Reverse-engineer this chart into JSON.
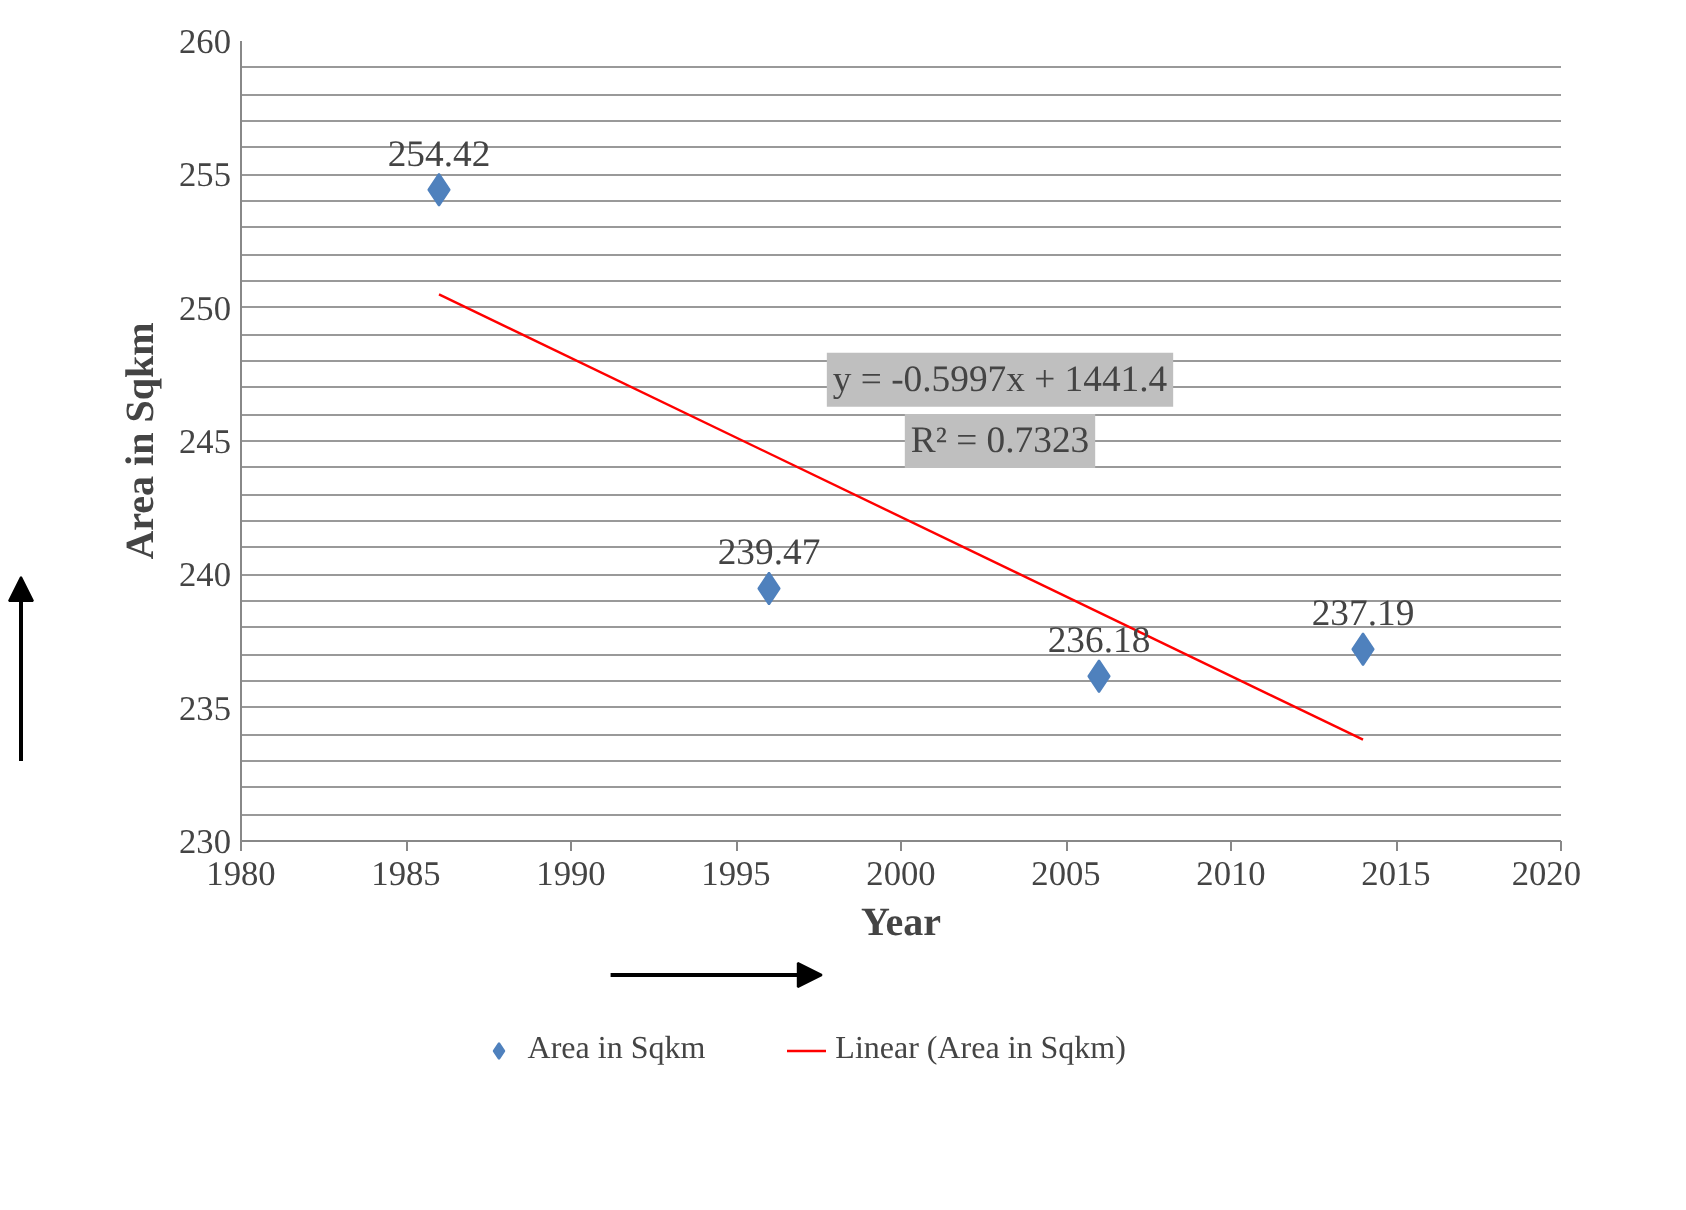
{
  "chart_data": {
    "type": "scatter",
    "xlabel": "Year",
    "ylabel": "Area in Sqkm",
    "xlim": [
      1980,
      2020
    ],
    "xticks": [
      1980,
      1985,
      1990,
      1995,
      2000,
      2005,
      2010,
      2015,
      2020
    ],
    "ylim": [
      230,
      260
    ],
    "yticks": [
      230,
      {
        "value": 231,
        "label": null
      },
      {
        "value": 232,
        "label": null
      },
      {
        "value": 233,
        "label": null
      },
      {
        "value": 234,
        "label": null
      },
      235,
      {
        "value": 236,
        "label": null
      },
      {
        "value": 237,
        "label": null
      },
      {
        "value": 238,
        "label": null
      },
      {
        "value": 239,
        "label": null
      },
      240,
      {
        "value": 241,
        "label": null
      },
      {
        "value": 242,
        "label": null
      },
      {
        "value": 243,
        "label": null
      },
      {
        "value": 244,
        "label": null
      },
      245,
      {
        "value": 246,
        "label": null
      },
      {
        "value": 247,
        "label": null
      },
      {
        "value": 248,
        "label": null
      },
      {
        "value": 249,
        "label": null
      },
      250,
      {
        "value": 251,
        "label": null
      },
      {
        "value": 252,
        "label": null
      },
      {
        "value": 253,
        "label": null
      },
      {
        "value": 254,
        "label": null
      },
      255,
      {
        "value": 256,
        "label": null
      },
      {
        "value": 257,
        "label": null
      },
      {
        "value": 258,
        "label": null
      },
      {
        "value": 259,
        "label": null
      },
      260
    ],
    "grid": "y",
    "legend": "bottom",
    "series": [
      {
        "name": "Area in Sqkm",
        "color": "#4f81bd",
        "marker": "diamond",
        "x": [
          1986,
          1996,
          2006,
          2014
        ],
        "values": [
          254.42,
          239.47,
          236.18,
          237.19
        ],
        "value_labels": [
          "254.42",
          "239.47",
          "236.18",
          "237.19"
        ]
      },
      {
        "name": "Linear (Area in Sqkm)",
        "type": "line",
        "color": "#ff0000",
        "x": [
          1986,
          2014
        ],
        "values": [
          250.5,
          233.8
        ]
      }
    ],
    "annotations": [
      "y = -0.5997x + 1441.4",
      "R² = 0.7323"
    ]
  }
}
